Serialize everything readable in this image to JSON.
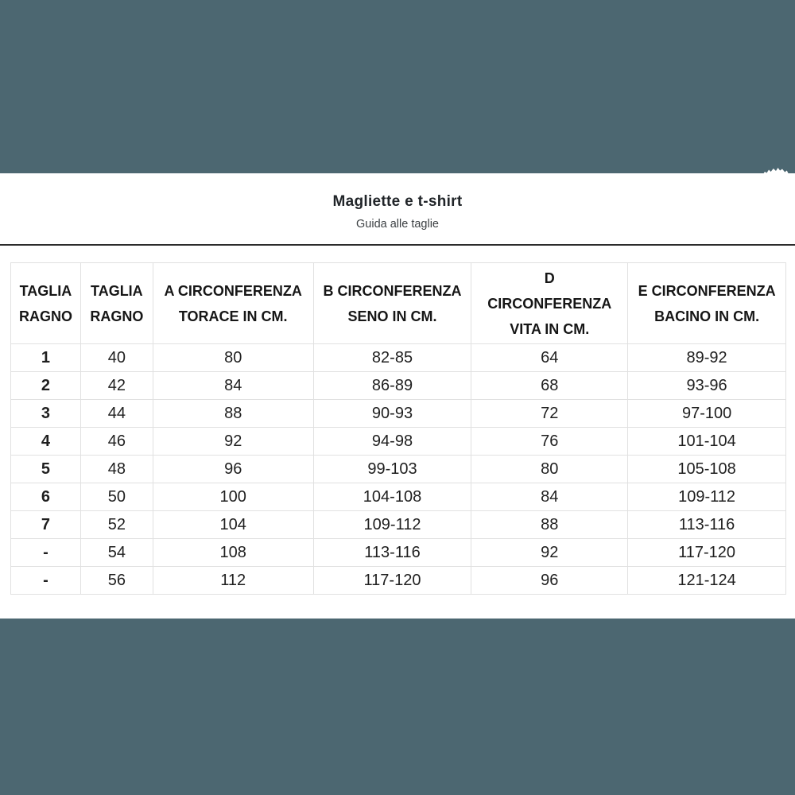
{
  "page": {
    "title": "Magliette e t-shirt",
    "subtitle": "Guida alle taglie"
  },
  "colors": {
    "background_teal": "#4C6771",
    "panel_white": "#FFFFFF",
    "divider_dark": "#2B2B2B",
    "table_border": "#E1E1E1",
    "text_dark": "#1F1F1F"
  },
  "table": {
    "headers": [
      {
        "lines": [
          "TAGLIA",
          "RAGNO"
        ]
      },
      {
        "lines": [
          "TAGLIA",
          "RAGNO"
        ]
      },
      {
        "lines": [
          "A CIRCONFERENZA",
          "TORACE IN CM."
        ]
      },
      {
        "lines": [
          "B CIRCONFERENZA",
          "SENO IN CM."
        ]
      },
      {
        "lines": [
          "D",
          "CIRCONFERENZA",
          "VITA IN CM."
        ]
      },
      {
        "lines": [
          "E CIRCONFERENZA",
          "BACINO IN CM."
        ]
      }
    ],
    "rows": [
      [
        "1",
        "40",
        "80",
        "82-85",
        "64",
        "89-92"
      ],
      [
        "2",
        "42",
        "84",
        "86-89",
        "68",
        "93-96"
      ],
      [
        "3",
        "44",
        "88",
        "90-93",
        "72",
        "97-100"
      ],
      [
        "4",
        "46",
        "92",
        "94-98",
        "76",
        "101-104"
      ],
      [
        "5",
        "48",
        "96",
        "99-103",
        "80",
        "105-108"
      ],
      [
        "6",
        "50",
        "100",
        "104-108",
        "84",
        "109-112"
      ],
      [
        "7",
        "52",
        "104",
        "109-112",
        "88",
        "113-116"
      ],
      [
        "-",
        "54",
        "108",
        "113-116",
        "92",
        "117-120"
      ],
      [
        "-",
        "56",
        "112",
        "117-120",
        "96",
        "121-124"
      ]
    ]
  }
}
